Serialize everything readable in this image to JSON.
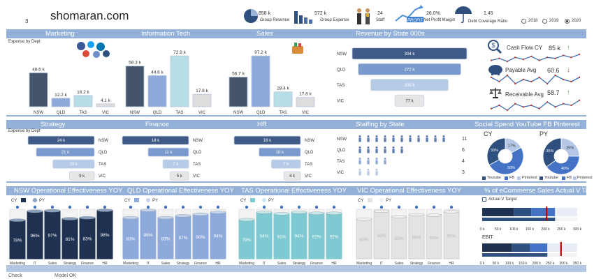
{
  "header": {
    "brand": "shomaran.com",
    "page_no": "3",
    "kpis": [
      {
        "value": "858 k",
        "label": "Group Revenue"
      },
      {
        "value": "572 k",
        "label": "Group Expense"
      },
      {
        "value": "24",
        "label": "Staff"
      },
      {
        "value": "26.0%",
        "label": "Net Profit Margin",
        "logo": "PROFIT"
      },
      {
        "value": "1.45",
        "label": "Debt Coverage Ratio"
      }
    ],
    "years": [
      {
        "label": "2018",
        "selected": false
      },
      {
        "label": "2019",
        "selected": false
      },
      {
        "label": "2020",
        "selected": true
      }
    ]
  },
  "sections": {
    "row1": [
      "Marketing",
      "Information Tech",
      "Sales",
      "Revenue by State 000s"
    ],
    "row2": [
      "Strategy",
      "Finance",
      "HR",
      "Staffing by State",
      "Social Spend YouTube FB Pinterest"
    ],
    "row3": [
      "NSW Operational Effectiveness YOY",
      "QLD Operational Effectiveness YOY",
      "TAS Operational Effectiveness YOY",
      "VIC Operational Effectiveness YOY",
      "% of eCommerse Sales Actual V Target"
    ]
  },
  "expense_by_dept_label": "Expense by Dept",
  "colors": {
    "header_band": "#93b1d8",
    "nsw": "#44546a",
    "qld": "#8eaadb",
    "tas": "#b7dde8",
    "vic": "#dddddd",
    "up": "#2e9e3e",
    "down": "#c0392b"
  },
  "chart_data": [
    {
      "id": "marketing",
      "type": "bar",
      "title": "Marketing",
      "categories": [
        "NSW",
        "QLD",
        "TAS",
        "VIC"
      ],
      "values": [
        48.6,
        12.2,
        16.2,
        4.1
      ],
      "value_labels": [
        "48.6 k",
        "12.2 k",
        "16.2 k",
        "4.1 k"
      ],
      "ylim": [
        0,
        75
      ]
    },
    {
      "id": "it",
      "type": "bar",
      "title": "Information Tech",
      "categories": [
        "NSW",
        "QLD",
        "TAS",
        "VIC"
      ],
      "values": [
        58.3,
        44.6,
        72.9,
        17.8
      ],
      "value_labels": [
        "58.3 k",
        "44.6 k",
        "72.9 k",
        "17.8 k"
      ],
      "ylim": [
        0,
        75
      ]
    },
    {
      "id": "sales",
      "type": "bar",
      "title": "Sales",
      "categories": [
        "NSW",
        "QLD",
        "TAS",
        "VIC"
      ],
      "values": [
        56.7,
        97.2,
        28.4,
        17.8
      ],
      "value_labels": [
        "56.7 k",
        "97.2 k",
        "28.4 k",
        "17.8 k"
      ],
      "ylim": [
        0,
        100
      ]
    },
    {
      "id": "revenue_by_state",
      "type": "bar",
      "orientation": "horizontal",
      "title": "Revenue by State 000s",
      "categories": [
        "NSW",
        "QLD",
        "TAS",
        "VIC"
      ],
      "values": [
        304,
        272,
        205,
        77
      ],
      "value_labels": [
        "304 k",
        "272 k",
        "205 k",
        "77 k"
      ]
    },
    {
      "id": "strategy",
      "type": "bar",
      "orientation": "horizontal",
      "title": "Strategy",
      "categories": [
        "NSW",
        "QLD",
        "TAS",
        "VIC"
      ],
      "values": [
        24,
        21,
        15,
        9
      ],
      "value_labels": [
        "24 k",
        "21 k",
        "15 k",
        "9 k"
      ]
    },
    {
      "id": "finance",
      "type": "bar",
      "orientation": "horizontal",
      "title": "Finance",
      "categories": [
        "NSW",
        "QLD",
        "TAS",
        "VIC"
      ],
      "values": [
        18,
        11,
        7,
        5
      ],
      "value_labels": [
        "18 k",
        "11 k",
        "7 k",
        "5 k"
      ]
    },
    {
      "id": "hr",
      "type": "bar",
      "orientation": "horizontal",
      "title": "HR",
      "categories": [
        "NSW",
        "QLD",
        "TAS",
        "VIC"
      ],
      "values": [
        16,
        10,
        7,
        4
      ],
      "value_labels": [
        "16 k",
        "10 k",
        "7 k",
        "4 k"
      ]
    },
    {
      "id": "staffing",
      "type": "table",
      "title": "Staffing by State",
      "categories": [
        "NSW",
        "QLD",
        "TAS",
        "VIC"
      ],
      "values": [
        11,
        6,
        4,
        3
      ]
    },
    {
      "id": "social_cy",
      "type": "pie",
      "title": "CY",
      "categories": [
        "Youtube",
        "FB",
        "Pinterest"
      ],
      "values": [
        33,
        50,
        17
      ],
      "value_labels": [
        "33%",
        "50%",
        "17%"
      ]
    },
    {
      "id": "social_py",
      "type": "pie",
      "title": "PY",
      "categories": [
        "Youtube",
        "FB",
        "Pinterest"
      ],
      "values": [
        35,
        40,
        25
      ],
      "value_labels": [
        "35%",
        "40%",
        "25%"
      ]
    },
    {
      "id": "nsw_oe",
      "type": "bar",
      "title": "NSW Operational Effectiveness YOY",
      "legend": [
        "CY",
        "PY"
      ],
      "categories": [
        "Marketing",
        "IT",
        "Sales",
        "Strategy",
        "Finance",
        "HR"
      ],
      "series": [
        {
          "name": "CY",
          "values": [
            78,
            96,
            97,
            81,
            83,
            98
          ]
        }
      ],
      "value_labels": [
        "78%",
        "96%",
        "97%",
        "81%",
        "83%",
        "98%"
      ],
      "ylim": [
        0,
        100
      ]
    },
    {
      "id": "qld_oe",
      "type": "bar",
      "title": "QLD Operational Effectiveness YOY",
      "legend": [
        "CY",
        "PY"
      ],
      "categories": [
        "Marketing",
        "IT",
        "Sales",
        "Strategy",
        "Finance",
        "HR"
      ],
      "series": [
        {
          "name": "CY",
          "values": [
            83,
            98,
            83,
            87,
            90,
            94
          ]
        }
      ],
      "value_labels": [
        "83%",
        "98%",
        "83%",
        "87%",
        "90%",
        "94%"
      ],
      "ylim": [
        0,
        100
      ]
    },
    {
      "id": "tas_oe",
      "type": "bar",
      "title": "TAS Operational Effectiveness YOY",
      "legend": [
        "CY",
        "PY"
      ],
      "categories": [
        "Marketing",
        "IT",
        "Sales",
        "Strategy",
        "Finance",
        "HR"
      ],
      "series": [
        {
          "name": "CY",
          "values": [
            79,
            94,
            91,
            94,
            92,
            92
          ]
        }
      ],
      "value_labels": [
        "79%",
        "94%",
        "91%",
        "94%",
        "92%",
        "92%"
      ],
      "ylim": [
        0,
        100
      ]
    },
    {
      "id": "vic_oe",
      "type": "bar",
      "title": "VIC Operational Effectiveness YOY",
      "legend": [
        "CY",
        "PY"
      ],
      "categories": [
        "Marketing",
        "IT",
        "Sales",
        "Strategy",
        "Finance",
        "HR"
      ],
      "series": [
        {
          "name": "CY",
          "values": [
            80,
            96,
            85,
            89,
            88,
            95
          ]
        }
      ],
      "value_labels": [
        "80%",
        "96%",
        "85%",
        "89%",
        "88%",
        "95%"
      ],
      "ylim": [
        0,
        100
      ]
    },
    {
      "id": "ecommerce",
      "type": "bar",
      "orientation": "horizontal",
      "title": "% of eCommerse Sales Actual V Target",
      "legend": [
        "Actual V Target"
      ],
      "x_ticks": [
        "0 k",
        "50 k",
        "100 k",
        "150 k",
        "200 k",
        "250 k",
        "300 k"
      ],
      "series": [
        {
          "name": "Actual V Target",
          "values": [
            230
          ],
          "target": 203,
          "bands": [
            100,
            155,
            230
          ]
        }
      ],
      "xlim": [
        0,
        300
      ]
    },
    {
      "id": "ebit",
      "type": "bar",
      "orientation": "horizontal",
      "title": "EBIT",
      "x_ticks": [
        "0 k",
        "50 k",
        "100 k",
        "150 k",
        "200 k",
        "250 k",
        "300 k",
        "350 k"
      ],
      "series": [
        {
          "name": "EBIT",
          "values": [
            240
          ],
          "target": 290,
          "bands": [
            110,
            175,
            240
          ]
        }
      ],
      "xlim": [
        0,
        350
      ]
    }
  ],
  "kpi_side": [
    {
      "label": "Cash Flow CY",
      "value": "85 k",
      "trend": "up",
      "icon": "dollar-search-icon",
      "spark": [
        5,
        7,
        4,
        8,
        6,
        9,
        5,
        8,
        7,
        10,
        8,
        11
      ]
    },
    {
      "label": "Payable Avg",
      "value": "60.6",
      "trend": "down",
      "icon": "piggy-bank-icon",
      "spark": [
        8,
        6,
        9,
        5,
        7,
        6,
        8,
        5,
        9,
        7,
        6,
        8
      ]
    },
    {
      "label": "Receivable Avg",
      "value": "58.7",
      "trend": "up",
      "icon": "scales-icon",
      "spark": [
        4,
        6,
        3,
        7,
        5,
        6,
        4,
        8,
        5,
        7,
        6,
        9
      ]
    }
  ],
  "footer": {
    "left": "Check",
    "right": "Model OK"
  }
}
